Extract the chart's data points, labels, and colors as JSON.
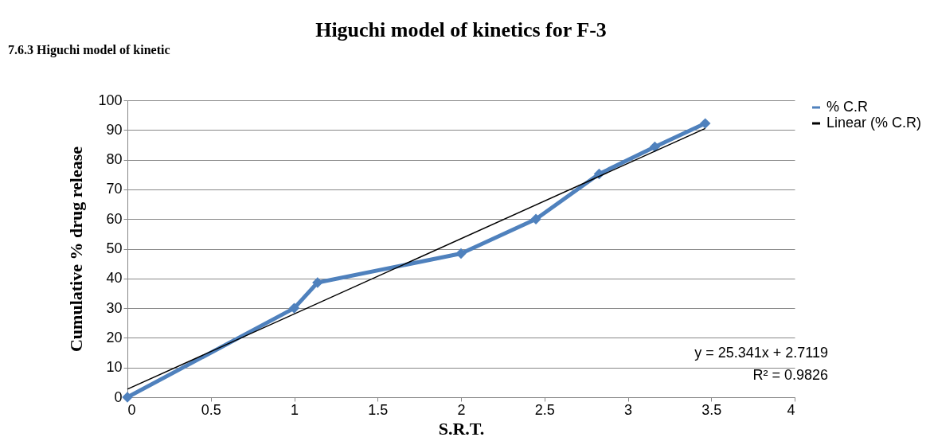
{
  "chart_data": {
    "type": "line",
    "title": "Higuchi model of kinetics for F-3",
    "xlabel": "S.R.T.",
    "ylabel": "Cumulative  % drug release",
    "x": [
      0,
      1,
      1.14,
      2,
      2.449,
      2.828,
      3.162,
      3.464
    ],
    "series": [
      {
        "name": "% C.R",
        "color": "#4f81bd",
        "values": [
          0,
          30,
          38.6,
          48.4,
          60,
          75.2,
          84.3,
          92.2
        ],
        "marker": "diamond"
      },
      {
        "name": "Linear (% C.R)",
        "color": "#000000",
        "x": [
          0,
          3.464
        ],
        "values": [
          2.7,
          90.5
        ],
        "marker": "none"
      }
    ],
    "xlim": [
      0,
      4
    ],
    "xticks": [
      0,
      0.5,
      1,
      1.5,
      2,
      2.5,
      3,
      3.5,
      4
    ],
    "ylim": [
      0,
      100
    ],
    "yticks": [
      0,
      10,
      20,
      30,
      40,
      50,
      60,
      70,
      80,
      90,
      100
    ],
    "grid": "y",
    "legend": "right",
    "line_style": "solid",
    "annotations": [
      "7.6.3 Higuchi model of kinetic",
      "y = 25.341x + 2.7119",
      "R² = 0.9826"
    ]
  }
}
